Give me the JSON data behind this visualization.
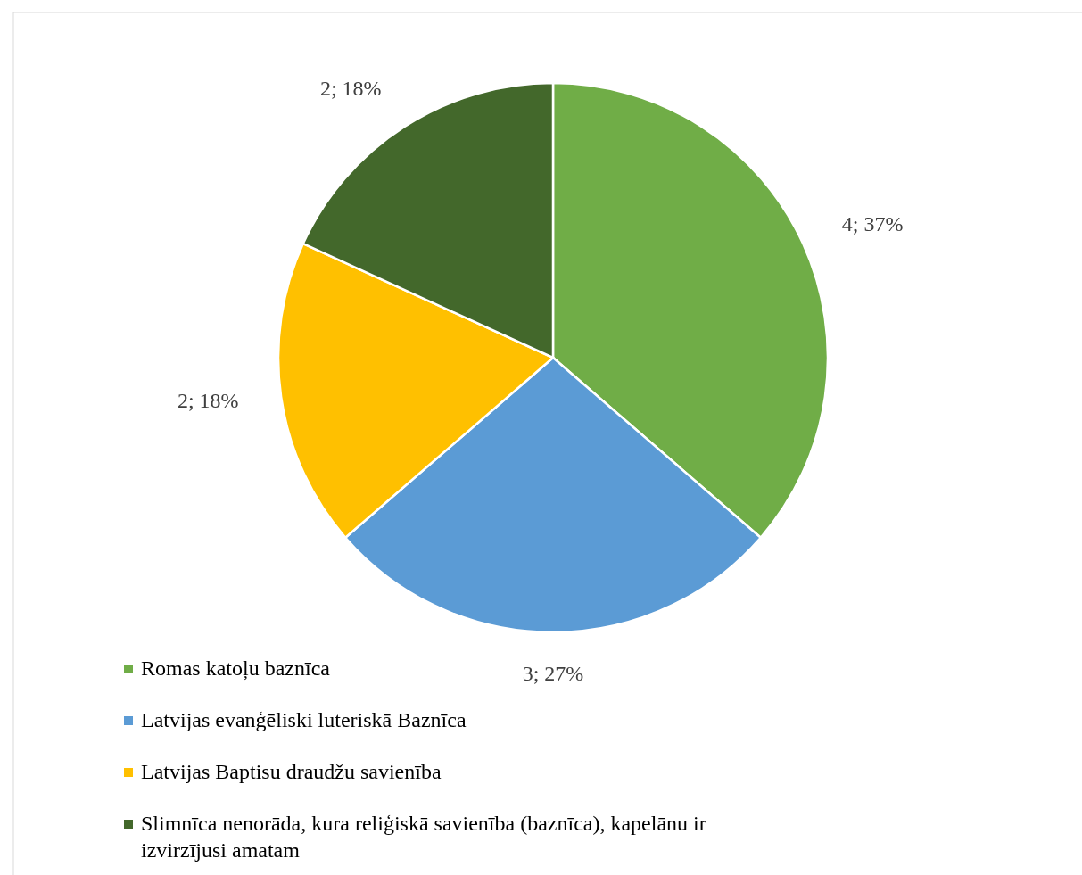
{
  "chart_data": {
    "type": "pie",
    "categories": [
      "Romas katoļu baznīca",
      "Latvijas evanģēliski luteriskā Baznīca",
      "Latvijas Baptisu draudžu savienība",
      "Slimnīca nenorāda, kura reliģiskā savienība (baznīca), kapelānu ir izvirzījusi amatam"
    ],
    "values": [
      4,
      3,
      2,
      2
    ],
    "colors": [
      "#70ad47",
      "#5b9bd5",
      "#ffc000",
      "#43682b"
    ],
    "value_labels": [
      "4; 37%",
      "3; 27%",
      "2; 18%",
      "2; 18%"
    ],
    "legend": "bottom left"
  }
}
